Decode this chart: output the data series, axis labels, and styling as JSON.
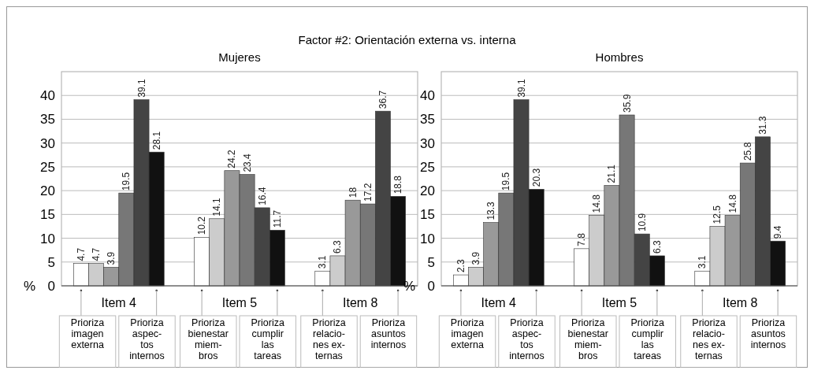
{
  "chart_data": [
    {
      "type": "bar",
      "title": "Factor #2: Orientación externa vs. interna",
      "subtitle": "Mujeres",
      "ylabel": "%",
      "categories": [
        "Item 4",
        "Item 5",
        "Item 8"
      ],
      "series": [
        {
          "color": "#ffffff",
          "values": [
            4.7,
            10.2,
            3.1
          ]
        },
        {
          "color": "#cccccc",
          "values": [
            4.7,
            14.1,
            6.3
          ]
        },
        {
          "color": "#999999",
          "values": [
            3.9,
            24.2,
            18
          ]
        },
        {
          "color": "#777777",
          "values": [
            19.5,
            23.4,
            17.2
          ]
        },
        {
          "color": "#444444",
          "values": [
            39.1,
            16.4,
            36.7
          ]
        },
        {
          "color": "#111111",
          "values": [
            28.1,
            11.7,
            18.8
          ]
        }
      ],
      "ylim": [
        0,
        45
      ],
      "yticks": [
        0,
        5,
        10,
        15,
        20,
        25,
        30,
        35,
        40
      ],
      "grid": "y",
      "data_labels": true,
      "annotations": [
        "Prioriza\nimagen\nexterna",
        "Prioriza\naspec-\ntos\ninternos",
        "Prioriza\nbienestar\nmiem-\nbros",
        "Prioriza\ncumplir\nlas\ntareas",
        "Prioriza\nrelacio-\nnes ex-\nternas",
        "Prioriza\nasuntos\ninternos"
      ]
    },
    {
      "type": "bar",
      "subtitle": "Hombres",
      "ylabel": "%",
      "categories": [
        "Item 4",
        "Item 5",
        "Item 8"
      ],
      "series": [
        {
          "color": "#ffffff",
          "values": [
            2.3,
            7.8,
            3.1
          ]
        },
        {
          "color": "#cccccc",
          "values": [
            3.9,
            14.8,
            12.5
          ]
        },
        {
          "color": "#999999",
          "values": [
            13.3,
            21.1,
            14.8
          ]
        },
        {
          "color": "#777777",
          "values": [
            19.5,
            35.9,
            25.8
          ]
        },
        {
          "color": "#444444",
          "values": [
            39.1,
            10.9,
            31.3
          ]
        },
        {
          "color": "#111111",
          "values": [
            20.3,
            6.3,
            9.4
          ]
        }
      ],
      "ylim": [
        0,
        45
      ],
      "yticks": [
        0,
        5,
        10,
        15,
        20,
        25,
        30,
        35,
        40
      ],
      "grid": "y",
      "data_labels": true,
      "annotations": [
        "Prioriza\nimagen\nexterna",
        "Prioriza\naspec-\ntos\ninternos",
        "Prioriza\nbienestar\nmiem-\nbros",
        "Prioriza\ncumplir\nlas\ntareas",
        "Prioriza\nrelacio-\nnes ex-\nternas",
        "Prioriza\nasuntos\ninternos"
      ]
    }
  ]
}
